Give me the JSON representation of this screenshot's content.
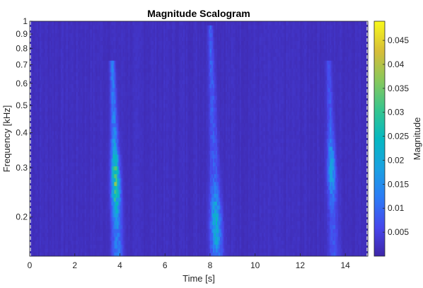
{
  "chart_data": {
    "type": "heatmap",
    "title": "Magnitude Scalogram",
    "xlabel": "Time [s]",
    "ylabel": "Frequency [kHz]",
    "xlim": [
      0,
      15
    ],
    "ylim": [
      0.145,
      1.0
    ],
    "y_scale": "log",
    "x_ticks": [
      0,
      2,
      4,
      6,
      8,
      10,
      12,
      14
    ],
    "x_tick_labels": [
      "0",
      "2",
      "4",
      "6",
      "8",
      "10",
      "12",
      "14"
    ],
    "y_ticks": [
      0.2,
      0.3,
      0.4,
      0.5,
      0.6,
      0.7,
      0.8,
      0.9,
      1
    ],
    "y_tick_labels": [
      "0.2",
      "0.3",
      "0.4",
      "0.5",
      "0.6",
      "0.7",
      "0.8",
      "0.9",
      "1"
    ],
    "colorbar": {
      "label": "Magnitude",
      "range": [
        0,
        0.049
      ],
      "ticks": [
        0.005,
        0.01,
        0.015,
        0.02,
        0.025,
        0.03,
        0.035,
        0.04,
        0.045
      ],
      "tick_labels": [
        "0.005",
        "0.01",
        "0.015",
        "0.02",
        "0.025",
        "0.03",
        "0.035",
        "0.04",
        "0.045"
      ],
      "colormap": "parula"
    },
    "background_magnitude": 0.002,
    "energy_bursts": [
      {
        "time": 3.9,
        "freq_range": [
          0.145,
          0.6
        ],
        "peak_magnitude": 0.038,
        "peak_freq": 0.27
      },
      {
        "time": 8.3,
        "freq_range": [
          0.145,
          0.8
        ],
        "peak_magnitude": 0.025,
        "peak_freq": 0.19
      },
      {
        "time": 13.5,
        "freq_range": [
          0.145,
          0.6
        ],
        "peak_magnitude": 0.02,
        "peak_freq": 0.3
      }
    ]
  }
}
